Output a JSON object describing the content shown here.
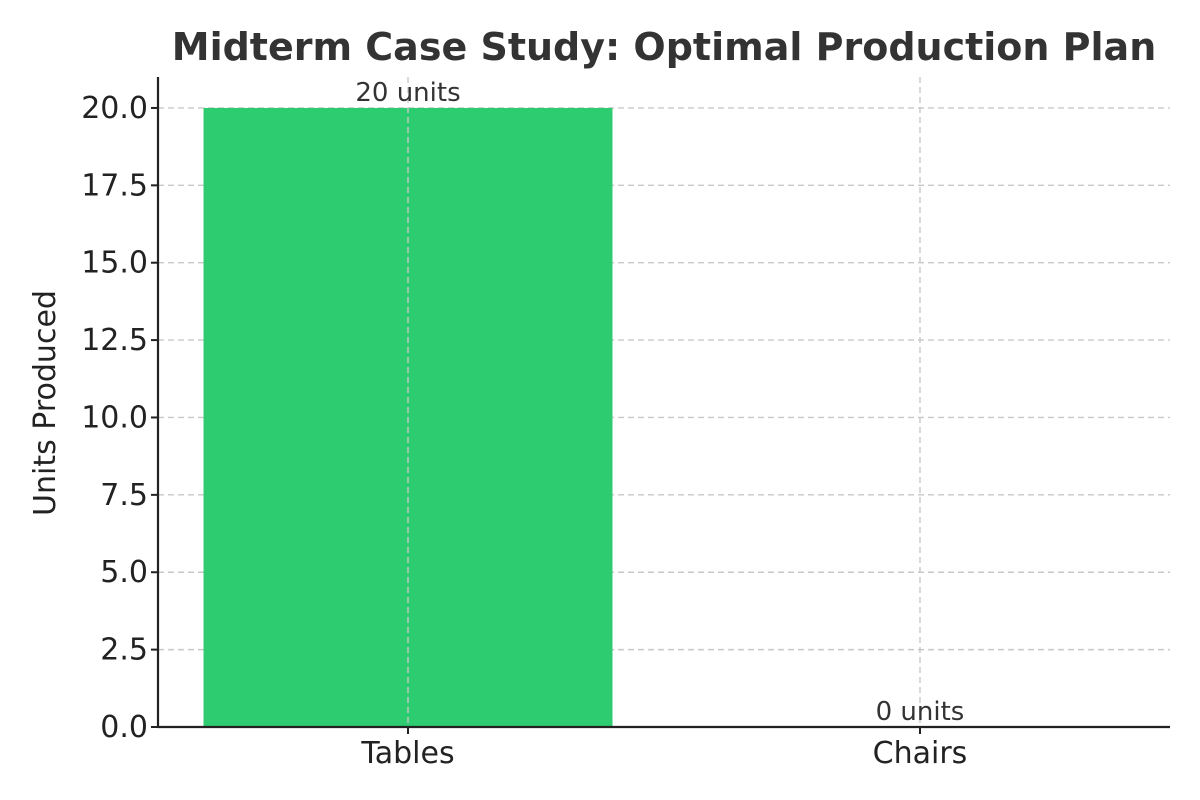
{
  "chart_data": {
    "type": "bar",
    "title": "Midterm Case Study: Optimal Production Plan",
    "xlabel": "",
    "ylabel": "Units Produced",
    "categories": [
      "Tables",
      "Chairs"
    ],
    "values": [
      20,
      0
    ],
    "data_labels": [
      "20 units",
      "0 units"
    ],
    "ylim": [
      0,
      21
    ],
    "yticks": [
      0,
      2.5,
      5,
      7.5,
      10,
      12.5,
      15,
      17.5,
      20
    ],
    "ytick_labels": [
      "0.0",
      "2.5",
      "5.0",
      "7.5",
      "10.0",
      "12.5",
      "15.0",
      "17.5",
      "20.0"
    ],
    "grid": true,
    "colors": {
      "bar": "#2ecc71",
      "grid": "#c8c8c8",
      "axis": "#222222",
      "title": "#333333"
    }
  }
}
